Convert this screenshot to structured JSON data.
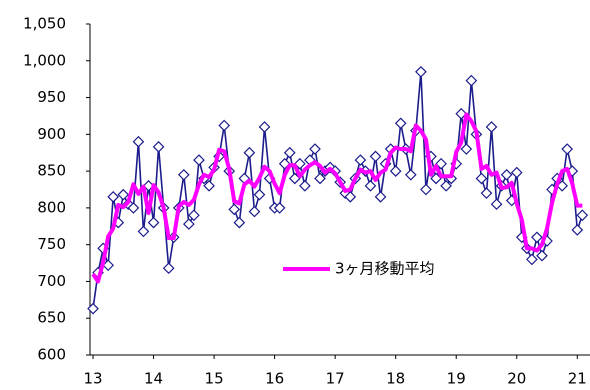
{
  "chart_data": {
    "type": "line",
    "x": [
      13,
      13.083,
      13.167,
      13.25,
      13.333,
      13.417,
      13.5,
      13.583,
      13.667,
      13.75,
      13.833,
      13.917,
      14,
      14.083,
      14.167,
      14.25,
      14.333,
      14.417,
      14.5,
      14.583,
      14.667,
      14.75,
      14.833,
      14.917,
      15,
      15.083,
      15.167,
      15.25,
      15.333,
      15.417,
      15.5,
      15.583,
      15.667,
      15.75,
      15.833,
      15.917,
      16,
      16.083,
      16.167,
      16.25,
      16.333,
      16.417,
      16.5,
      16.583,
      16.667,
      16.75,
      16.833,
      16.917,
      17,
      17.083,
      17.167,
      17.25,
      17.333,
      17.417,
      17.5,
      17.583,
      17.667,
      17.75,
      17.833,
      17.917,
      18,
      18.083,
      18.167,
      18.25,
      18.333,
      18.417,
      18.5,
      18.583,
      18.667,
      18.75,
      18.833,
      18.917,
      19,
      19.083,
      19.167,
      19.25,
      19.333,
      19.417,
      19.5,
      19.583,
      19.667,
      19.75,
      19.833,
      19.917,
      20,
      20.083,
      20.167,
      20.25,
      20.333,
      20.417,
      20.5,
      20.583,
      20.667,
      20.75,
      20.833,
      20.917,
      21,
      21.083
    ],
    "series": [
      {
        "color": "#1c1c8c",
        "marker": "diamond",
        "values": [
          663,
          712,
          745,
          722,
          815,
          780,
          818,
          805,
          800,
          890,
          768,
          830,
          780,
          883,
          800,
          718,
          760,
          800,
          845,
          778,
          790,
          865,
          840,
          830,
          855,
          870,
          912,
          850,
          798,
          780,
          840,
          875,
          795,
          818,
          910,
          840,
          800,
          800,
          860,
          875,
          840,
          860,
          830,
          865,
          880,
          840,
          850,
          855,
          850,
          835,
          820,
          815,
          840,
          865,
          850,
          830,
          870,
          815,
          860,
          880,
          850,
          915,
          880,
          845,
          905,
          985,
          825,
          870,
          840,
          860,
          830,
          840,
          860,
          928,
          880,
          973,
          900,
          840,
          820,
          910,
          805,
          830,
          845,
          810,
          848,
          760,
          745,
          730,
          760,
          735,
          755,
          825,
          840,
          830,
          880,
          850,
          770,
          790
        ]
      },
      {
        "name": "3ヶ月移動平均",
        "color": "#ff00ff",
        "values": [
          710,
          700,
          726,
          761,
          772,
          804,
          801,
          808,
          832,
          819,
          829,
          793,
          831,
          821,
          800,
          759,
          759,
          802,
          808,
          804,
          811,
          832,
          845,
          842,
          852,
          879,
          877,
          853,
          809,
          806,
          832,
          837,
          829,
          841,
          856,
          850,
          833,
          820,
          845,
          858,
          858,
          843,
          852,
          858,
          862,
          857,
          848,
          853,
          847,
          835,
          823,
          825,
          840,
          852,
          848,
          850,
          838,
          848,
          852,
          875,
          882,
          880,
          880,
          877,
          912,
          905,
          893,
          845,
          857,
          843,
          843,
          843,
          876,
          889,
          927,
          918,
          904,
          853,
          857,
          845,
          848,
          827,
          828,
          834,
          806,
          784,
          745,
          745,
          742,
          750,
          772,
          807,
          832,
          850,
          853,
          833,
          803,
          803
        ]
      }
    ],
    "xlim": [
      12.95,
      21.21
    ],
    "xticks": [
      13,
      14,
      15,
      16,
      17,
      18,
      19,
      20,
      21
    ],
    "ylim": [
      600,
      1050
    ],
    "yticks": [
      600,
      650,
      700,
      750,
      800,
      850,
      900,
      950,
      {
        "value": 1000,
        "label": "1,000"
      },
      {
        "value": 1050,
        "label": "1,050"
      }
    ],
    "grid": false
  }
}
